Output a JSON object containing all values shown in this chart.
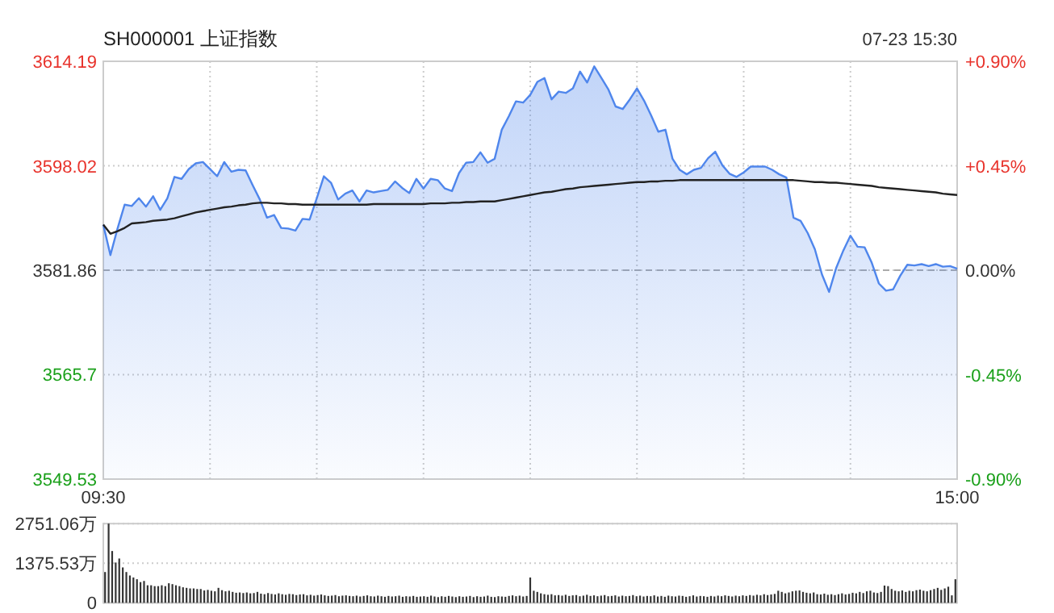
{
  "chart_data": [
    {
      "type": "area",
      "title": "SH000001 上证指数",
      "annotations": [
        "07-23 15:30"
      ],
      "categories": [
        "09:30",
        null,
        null,
        null,
        null,
        null,
        null,
        null,
        null,
        null,
        null,
        null,
        null,
        null,
        null,
        null,
        null,
        null,
        null,
        null,
        null,
        null,
        null,
        null,
        null,
        null,
        null,
        null,
        null,
        null,
        null,
        null,
        null,
        null,
        null,
        null,
        null,
        null,
        null,
        null,
        null,
        null,
        null,
        null,
        null,
        null,
        null,
        null,
        null,
        null,
        null,
        null,
        null,
        null,
        null,
        null,
        null,
        null,
        null,
        null,
        null,
        null,
        null,
        null,
        null,
        null,
        null,
        null,
        null,
        null,
        null,
        null,
        null,
        null,
        null,
        null,
        null,
        null,
        null,
        null,
        null,
        null,
        null,
        null,
        null,
        null,
        null,
        null,
        null,
        null,
        null,
        null,
        null,
        null,
        null,
        null,
        null,
        null,
        null,
        null,
        null,
        null,
        null,
        null,
        null,
        null,
        null,
        null,
        null,
        null,
        null,
        null,
        null,
        null,
        null,
        null,
        null,
        null,
        null,
        null,
        "15:00"
      ],
      "ylim": [
        3549.53,
        3614.19
      ],
      "yticks": [
        3549.53,
        3565.7,
        {
          "value": 3581.86,
          "label": "3581.86"
        },
        3598.02,
        3614.19
      ],
      "y2lim": [
        -0.9,
        0.9
      ],
      "y2ticks": [
        {
          "value": -0.9,
          "label": "-0.90%"
        },
        {
          "value": -0.45,
          "label": "-0.45%"
        },
        {
          "value": 0,
          "label": "0.00%"
        },
        {
          "value": 0.45,
          "label": "+0.45%"
        },
        {
          "value": 0.9,
          "label": "+0.90%"
        }
      ],
      "ref_lines": [
        {
          "axis": "y",
          "value": 3581.86,
          "line_style": "dashed",
          "color": "#aaaaaa"
        }
      ],
      "grid": true,
      "series": [
        {
          "color": "#4f86ec",
          "values": [
            3588.9,
            3584.2,
            3588.3,
            3592.0,
            3591.8,
            3593.0,
            3591.7,
            3593.3,
            3591.2,
            3593.0,
            3596.3,
            3596.0,
            3597.5,
            3598.4,
            3598.6,
            3597.5,
            3596.4,
            3598.6,
            3597.1,
            3597.4,
            3597.3,
            3595.0,
            3592.8,
            3590.0,
            3590.4,
            3588.4,
            3588.3,
            3588.0,
            3589.8,
            3589.7,
            3593.0,
            3596.4,
            3595.4,
            3592.8,
            3593.7,
            3594.2,
            3592.5,
            3594.2,
            3593.9,
            3594.1,
            3594.3,
            3595.6,
            3594.6,
            3593.8,
            3596.0,
            3594.5,
            3596.0,
            3595.8,
            3594.5,
            3594.1,
            3596.9,
            3598.5,
            3598.6,
            3600.1,
            3598.5,
            3599.1,
            3603.6,
            3605.7,
            3608.0,
            3607.8,
            3609.0,
            3611.0,
            3611.6,
            3608.3,
            3609.5,
            3609.3,
            3610.0,
            3612.6,
            3610.9,
            3613.4,
            3611.6,
            3609.8,
            3607.2,
            3606.8,
            3608.3,
            3610.0,
            3608.1,
            3605.8,
            3603.3,
            3603.6,
            3599.1,
            3597.4,
            3596.7,
            3597.4,
            3597.7,
            3599.2,
            3600.2,
            3598.1,
            3596.8,
            3596.3,
            3597.0,
            3597.9,
            3597.9,
            3597.9,
            3597.4,
            3596.7,
            3596.2,
            3590.0,
            3589.5,
            3587.6,
            3585.1,
            3581.2,
            3578.5,
            3582.2,
            3584.9,
            3587.2,
            3585.5,
            3585.4,
            3583.0,
            3579.8,
            3578.7,
            3578.9,
            3581.0,
            3582.7,
            3582.6,
            3582.8,
            3582.5,
            3582.8,
            3582.4,
            3582.5,
            3582.1
          ]
        },
        {
          "type": "line",
          "color": "#222222",
          "values": [
            3588.9,
            3587.5,
            3587.9,
            3588.4,
            3589.1,
            3589.2,
            3589.3,
            3589.5,
            3589.6,
            3589.7,
            3589.9,
            3590.2,
            3590.5,
            3590.8,
            3591.0,
            3591.2,
            3591.4,
            3591.6,
            3591.7,
            3591.9,
            3592.0,
            3592.2,
            3592.3,
            3592.3,
            3592.2,
            3592.2,
            3592.1,
            3592.1,
            3592.0,
            3592.0,
            3592.0,
            3592.0,
            3592.0,
            3592.0,
            3592.0,
            3592.0,
            3592.0,
            3592.0,
            3592.1,
            3592.1,
            3592.1,
            3592.1,
            3592.1,
            3592.1,
            3592.1,
            3592.1,
            3592.2,
            3592.2,
            3592.2,
            3592.3,
            3592.3,
            3592.4,
            3592.4,
            3592.5,
            3592.5,
            3592.5,
            3592.7,
            3592.9,
            3593.1,
            3593.3,
            3593.5,
            3593.7,
            3593.9,
            3594.0,
            3594.2,
            3594.4,
            3594.5,
            3594.7,
            3594.8,
            3594.9,
            3595.0,
            3595.1,
            3595.2,
            3595.3,
            3595.4,
            3595.5,
            3595.5,
            3595.6,
            3595.6,
            3595.7,
            3595.7,
            3595.8,
            3595.8,
            3595.8,
            3595.8,
            3595.8,
            3595.8,
            3595.8,
            3595.8,
            3595.8,
            3595.8,
            3595.8,
            3595.8,
            3595.8,
            3595.8,
            3595.8,
            3595.8,
            3595.8,
            3595.7,
            3595.6,
            3595.5,
            3595.5,
            3595.4,
            3595.4,
            3595.3,
            3595.2,
            3595.1,
            3595.0,
            3594.9,
            3594.7,
            3594.6,
            3594.5,
            3594.4,
            3594.3,
            3594.2,
            3594.1,
            3594.0,
            3593.9,
            3593.7,
            3593.6,
            3593.5
          ]
        }
      ]
    },
    {
      "type": "bar",
      "tick_labels": "y",
      "grid": "y",
      "color": "#333333",
      "categories": [
        null,
        null,
        null,
        null,
        null,
        null,
        null,
        null,
        null,
        null,
        null,
        null,
        null,
        null,
        null,
        null,
        null,
        null,
        null,
        null,
        null,
        null,
        null,
        null,
        null,
        null,
        null,
        null,
        null,
        null,
        null,
        null,
        null,
        null,
        null,
        null,
        null,
        null,
        null,
        null,
        null,
        null,
        null,
        null,
        null,
        null,
        null,
        null,
        null,
        null,
        null,
        null,
        null,
        null,
        null,
        null,
        null,
        null,
        null,
        null,
        null,
        null,
        null,
        null,
        null,
        null,
        null,
        null,
        null,
        null,
        null,
        null,
        null,
        null,
        null,
        null,
        null,
        null,
        null,
        null,
        null,
        null,
        null,
        null,
        null,
        null,
        null,
        null,
        null,
        null,
        null,
        null,
        null,
        null,
        null,
        null,
        null,
        null,
        null,
        null,
        null,
        null,
        null,
        null,
        null,
        null,
        null,
        null,
        null,
        null,
        null,
        null,
        null,
        null,
        null,
        null,
        null,
        null,
        null,
        null,
        null,
        null,
        null,
        null,
        null,
        null,
        null,
        null,
        null,
        null,
        null,
        null,
        null,
        null,
        null,
        null,
        null,
        null,
        null,
        null,
        null,
        null,
        null,
        null,
        null,
        null,
        null,
        null,
        null,
        null,
        null,
        null,
        null,
        null,
        null,
        null,
        null,
        null,
        null,
        null,
        null,
        null,
        null,
        null,
        null,
        null,
        null,
        null,
        null,
        null,
        null,
        null,
        null,
        null,
        null,
        null,
        null,
        null,
        null,
        null,
        null,
        null,
        null,
        null,
        null,
        null,
        null,
        null,
        null,
        null,
        null,
        null,
        null,
        null,
        null,
        null,
        null,
        null,
        null,
        null,
        null,
        null,
        null,
        null,
        null,
        null,
        null,
        null,
        null,
        null,
        null,
        null,
        null,
        null,
        null,
        null,
        null,
        null,
        null,
        null,
        null,
        null,
        null,
        null,
        null,
        null,
        null,
        null,
        null,
        null,
        null,
        null,
        null,
        null,
        null,
        null,
        null,
        null,
        null,
        null,
        null
      ],
      "values": [
        1070,
        2750,
        1800,
        1400,
        1540,
        1230,
        1070,
        950,
        880,
        820,
        720,
        760,
        610,
        610,
        580,
        580,
        610,
        580,
        680,
        650,
        610,
        580,
        540,
        520,
        500,
        500,
        480,
        480,
        430,
        450,
        420,
        400,
        520,
        440,
        400,
        420,
        380,
        350,
        360,
        340,
        360,
        330,
        340,
        380,
        320,
        300,
        340,
        310,
        290,
        330,
        300,
        280,
        310,
        300,
        270,
        290,
        300,
        260,
        280,
        250,
        270,
        290,
        260,
        240,
        250,
        270,
        230,
        250,
        260,
        240,
        230,
        250,
        220,
        240,
        260,
        230,
        220,
        250,
        230,
        210,
        240,
        220,
        230,
        250,
        210,
        230,
        220,
        240,
        210,
        220,
        230,
        210,
        250,
        220,
        200,
        230,
        210,
        240,
        220,
        200,
        230,
        210,
        220,
        240,
        200,
        230,
        210,
        220,
        250,
        210,
        200,
        230,
        220,
        210,
        240,
        260,
        230,
        250,
        220,
        240,
        880,
        420,
        380,
        330,
        300,
        280,
        300,
        260,
        270,
        250,
        280,
        240,
        260,
        270,
        230,
        250,
        280,
        240,
        260,
        230,
        250,
        270,
        230,
        240,
        260,
        220,
        250,
        230,
        240,
        270,
        230,
        250,
        220,
        240,
        230,
        260,
        220,
        240,
        210,
        250,
        230,
        220,
        250,
        240,
        210,
        230,
        260,
        220,
        240,
        230,
        210,
        240,
        220,
        250,
        230,
        260,
        240,
        220,
        250,
        230,
        260,
        240,
        270,
        250,
        280,
        260,
        300,
        270,
        290,
        310,
        420,
        380,
        330,
        360,
        400,
        420,
        430,
        380,
        350,
        330,
        360,
        300,
        290,
        320,
        280,
        300,
        270,
        300,
        330,
        290,
        310,
        350,
        330,
        380,
        340,
        400,
        420,
        360,
        340,
        380,
        600,
        580,
        480,
        420,
        400,
        430,
        380,
        420,
        400,
        440,
        460,
        420,
        400,
        440,
        480,
        520,
        450,
        500,
        560,
        260,
        820
      ],
      "ylim": [
        0,
        2751.06
      ],
      "yticks": [
        0,
        {
          "value": 1375.53,
          "label": "1375.53万"
        },
        {
          "value": 2751.06,
          "label": "2751.06万"
        }
      ]
    }
  ]
}
